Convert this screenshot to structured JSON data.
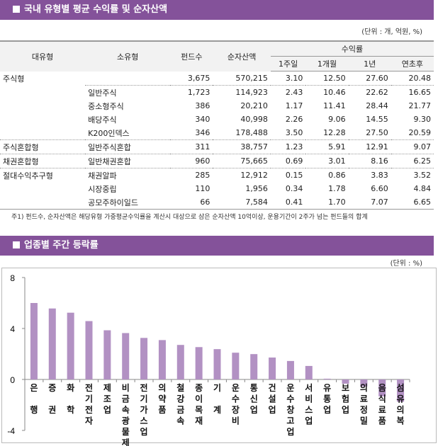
{
  "section1": {
    "title": "국내 유형별 평균 수익률 및 순자산액",
    "unit": "(단위 : 개, 억원, %)"
  },
  "table": {
    "headers": {
      "major": "대유형",
      "minor": "소유형",
      "funds": "펀드수",
      "assets": "순자산액",
      "returns": "수익률",
      "w1": "1주일",
      "m1": "1개월",
      "y1": "1년",
      "ytd": "연초후"
    },
    "rows": [
      [
        "주식형",
        "",
        "3,675",
        "570,215",
        "3.10",
        "12.50",
        "27.60",
        "20.48"
      ],
      [
        "",
        "일반주식",
        "1,723",
        "114,923",
        "2.43",
        "10.46",
        "22.62",
        "16.65"
      ],
      [
        "",
        "중소형주식",
        "386",
        "20,210",
        "1.17",
        "11.41",
        "28.44",
        "21.77"
      ],
      [
        "",
        "배당주식",
        "340",
        "40,998",
        "2.26",
        "9.06",
        "14.55",
        "9.30"
      ],
      [
        "",
        "K200인덱스",
        "346",
        "178,488",
        "3.50",
        "12.28",
        "27.50",
        "20.59"
      ],
      [
        "주식혼합형",
        "일반주식혼합",
        "311",
        "38,757",
        "1.23",
        "5.91",
        "12.91",
        "9.07"
      ],
      [
        "채권혼합형",
        "일반채권혼합",
        "960",
        "75,665",
        "0.69",
        "3.01",
        "8.16",
        "6.25"
      ],
      [
        "절대수익추구형",
        "채권알파",
        "285",
        "12,912",
        "0.15",
        "0.86",
        "3.83",
        "3.52"
      ],
      [
        "",
        "시장중립",
        "110",
        "1,956",
        "0.34",
        "1.78",
        "6.60",
        "4.84"
      ],
      [
        "",
        "공모주하이일드",
        "66",
        "7,584",
        "0.41",
        "1.70",
        "7.07",
        "6.65"
      ]
    ],
    "note": "주1) 펀드수, 순자산액은 해당유형 가중평균수익률을 계산시 대상으로 삼은 순자산액 10억이상, 운용기간이 2주가 넘는 펀드들의 합계"
  },
  "section2": {
    "title": "업종별 주간 등락률",
    "unit": "(단위 : %)"
  },
  "colors": {
    "header": "#84529a",
    "bar": "#b291c3"
  },
  "chart_data": {
    "type": "bar",
    "categories": [
      "은행",
      "증권",
      "화학",
      "전기전자",
      "제조업",
      "비금속광물제품",
      "전기가스업",
      "의약품",
      "철강금속",
      "종이목재",
      "기계",
      "운수장비",
      "통신업",
      "건설업",
      "운수창고업",
      "서비스업",
      "유통업",
      "보험업",
      "의료정밀",
      "음식료품",
      "섬유의복"
    ],
    "labels": [
      [
        "은",
        "",
        "행"
      ],
      [
        "증",
        "",
        "권"
      ],
      [
        "화",
        "",
        "학"
      ],
      [
        "전",
        "기",
        "전",
        "자"
      ],
      [
        "제",
        "조",
        "업"
      ],
      [
        "비",
        "금",
        "속",
        "광",
        "물",
        "제",
        "품"
      ],
      [
        "전",
        "기",
        "가",
        "스",
        "업"
      ],
      [
        "의",
        "약",
        "품"
      ],
      [
        "철",
        "강",
        "금",
        "속"
      ],
      [
        "종",
        "이",
        "목",
        "재"
      ],
      [
        "기",
        "",
        "계"
      ],
      [
        "운",
        "수",
        "장",
        "비"
      ],
      [
        "통",
        "신",
        "업"
      ],
      [
        "건",
        "설",
        "업"
      ],
      [
        "운",
        "수",
        "창",
        "고",
        "업"
      ],
      [
        "서",
        "비",
        "스",
        "업"
      ],
      [
        "유",
        "통",
        "업"
      ],
      [
        "보",
        "험",
        "업"
      ],
      [
        "의",
        "료",
        "정",
        "밀"
      ],
      [
        "음",
        "식",
        "료",
        "품"
      ],
      [
        "섬",
        "유",
        "의",
        "복"
      ]
    ],
    "values": [
      6.0,
      5.57,
      5.24,
      4.58,
      3.86,
      3.64,
      3.26,
      3.09,
      2.71,
      2.54,
      2.38,
      2.1,
      1.99,
      1.72,
      1.45,
      1.06,
      0.06,
      -0.33,
      -0.55,
      -1.33,
      -1.75
    ],
    "ylim": [
      -4,
      8
    ],
    "yticks": [
      "8",
      "4",
      "0",
      "-4"
    ],
    "grid": false
  }
}
